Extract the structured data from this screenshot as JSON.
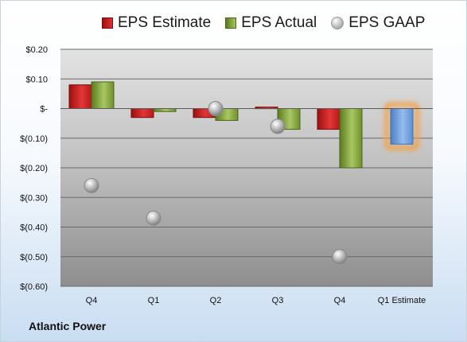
{
  "company": "Atlantic Power",
  "legend": {
    "estimate": "EPS Estimate",
    "actual": "EPS Actual",
    "gaap": "EPS GAAP"
  },
  "colors": {
    "estimate": "#d42a2a",
    "actual": "#8cae45",
    "gaap": "#b8b8b8",
    "forecast": "#6f9fdc",
    "forecast_glow": "#f5a042"
  },
  "chart_data": {
    "type": "bar",
    "categories": [
      "Q4",
      "Q1",
      "Q2",
      "Q3",
      "Q4",
      "Q1 Estimate"
    ],
    "ylim": [
      -0.6,
      0.2
    ],
    "yticks": [
      0.2,
      0.1,
      0.0,
      -0.1,
      -0.2,
      -0.3,
      -0.4,
      -0.5,
      -0.6
    ],
    "ytick_labels": [
      "$0.20",
      "$0.10",
      "$-",
      "$(0.10)",
      "$(0.20)",
      "$(0.30)",
      "$(0.40)",
      "$(0.50)",
      "$(0.60)"
    ],
    "grid": true,
    "legend_position": "top",
    "series": [
      {
        "name": "EPS Estimate",
        "type": "bar",
        "values": [
          0.08,
          -0.03,
          -0.03,
          0.005,
          -0.07,
          null
        ]
      },
      {
        "name": "EPS Actual",
        "type": "bar",
        "values": [
          0.09,
          -0.01,
          -0.04,
          -0.07,
          -0.2,
          null
        ]
      },
      {
        "name": "EPS GAAP",
        "type": "scatter",
        "values": [
          -0.26,
          -0.37,
          0.0,
          -0.06,
          -0.5,
          null
        ]
      },
      {
        "name": "Q1 Estimate",
        "type": "bar",
        "values": [
          null,
          null,
          null,
          null,
          null,
          -0.12
        ]
      }
    ]
  }
}
